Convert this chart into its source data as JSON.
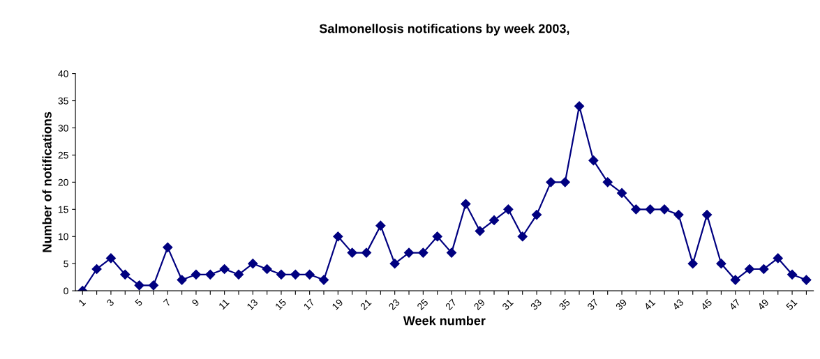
{
  "chart_data": {
    "type": "line",
    "title": "Salmonellosis notifications by week 2003,",
    "xlabel": "Week number",
    "ylabel": "Number of notifications",
    "categories": [
      "1",
      null,
      "3",
      null,
      "5",
      null,
      "7",
      null,
      "9",
      null,
      "11",
      null,
      "13",
      null,
      "15",
      null,
      "17",
      null,
      "19",
      null,
      "21",
      null,
      "23",
      null,
      "25",
      null,
      "27",
      null,
      "29",
      null,
      "31",
      null,
      "33",
      null,
      "35",
      null,
      "37",
      null,
      "39",
      null,
      "41",
      null,
      "43",
      null,
      "45",
      null,
      "47",
      null,
      "49",
      null,
      "51",
      null
    ],
    "series": [
      {
        "color": "#000080",
        "values": [
          0,
          4,
          6,
          3,
          1,
          1,
          8,
          2,
          3,
          3,
          4,
          3,
          5,
          4,
          3,
          3,
          3,
          2,
          10,
          7,
          7,
          12,
          5,
          7,
          7,
          10,
          7,
          16,
          11,
          13,
          15,
          10,
          14,
          20,
          20,
          34,
          24,
          20,
          18,
          15,
          15,
          15,
          14,
          5,
          14,
          5,
          2,
          4,
          4,
          6,
          3,
          2
        ]
      }
    ],
    "ylim": [
      0,
      40
    ],
    "yticks": [
      0,
      5,
      10,
      15,
      20,
      25,
      30,
      35,
      40
    ],
    "grid": false,
    "legend": false,
    "marker": "diamond",
    "line_style": "solid"
  }
}
